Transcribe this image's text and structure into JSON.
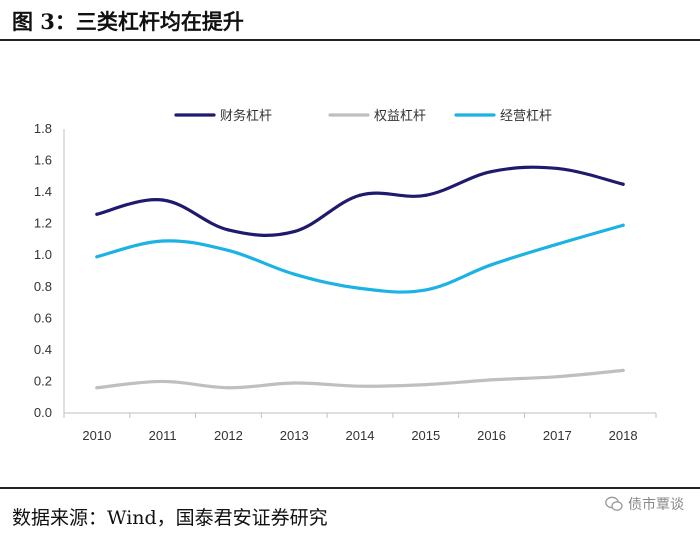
{
  "figure": {
    "title": "图  3：三类杠杆均在提升",
    "source": "数据来源：Wind，国泰君安证券研究",
    "watermark": "债市覃谈"
  },
  "chart_data": {
    "type": "line",
    "title": "",
    "xlabel": "",
    "ylabel": "",
    "categories": [
      "2010",
      "2011",
      "2012",
      "2013",
      "2014",
      "2015",
      "2016",
      "2017",
      "2018"
    ],
    "ylim": [
      0,
      1.8
    ],
    "yticks": [
      "0.0",
      "0.2",
      "0.4",
      "0.6",
      "0.8",
      "1.0",
      "1.2",
      "1.4",
      "1.6",
      "1.8"
    ],
    "grid": false,
    "legend_position": "top",
    "series": [
      {
        "name": "财务杠杆",
        "color": "#1f1a6e",
        "values": [
          1.26,
          1.35,
          1.16,
          1.15,
          1.38,
          1.38,
          1.53,
          1.55,
          1.45
        ]
      },
      {
        "name": "权益杠杆",
        "color": "#bfbfbf",
        "values": [
          0.16,
          0.2,
          0.16,
          0.19,
          0.17,
          0.18,
          0.21,
          0.23,
          0.27
        ]
      },
      {
        "name": "经营杠杆",
        "color": "#1cb2e3",
        "values": [
          0.99,
          1.09,
          1.03,
          0.88,
          0.79,
          0.78,
          0.94,
          1.07,
          1.19
        ]
      }
    ]
  }
}
